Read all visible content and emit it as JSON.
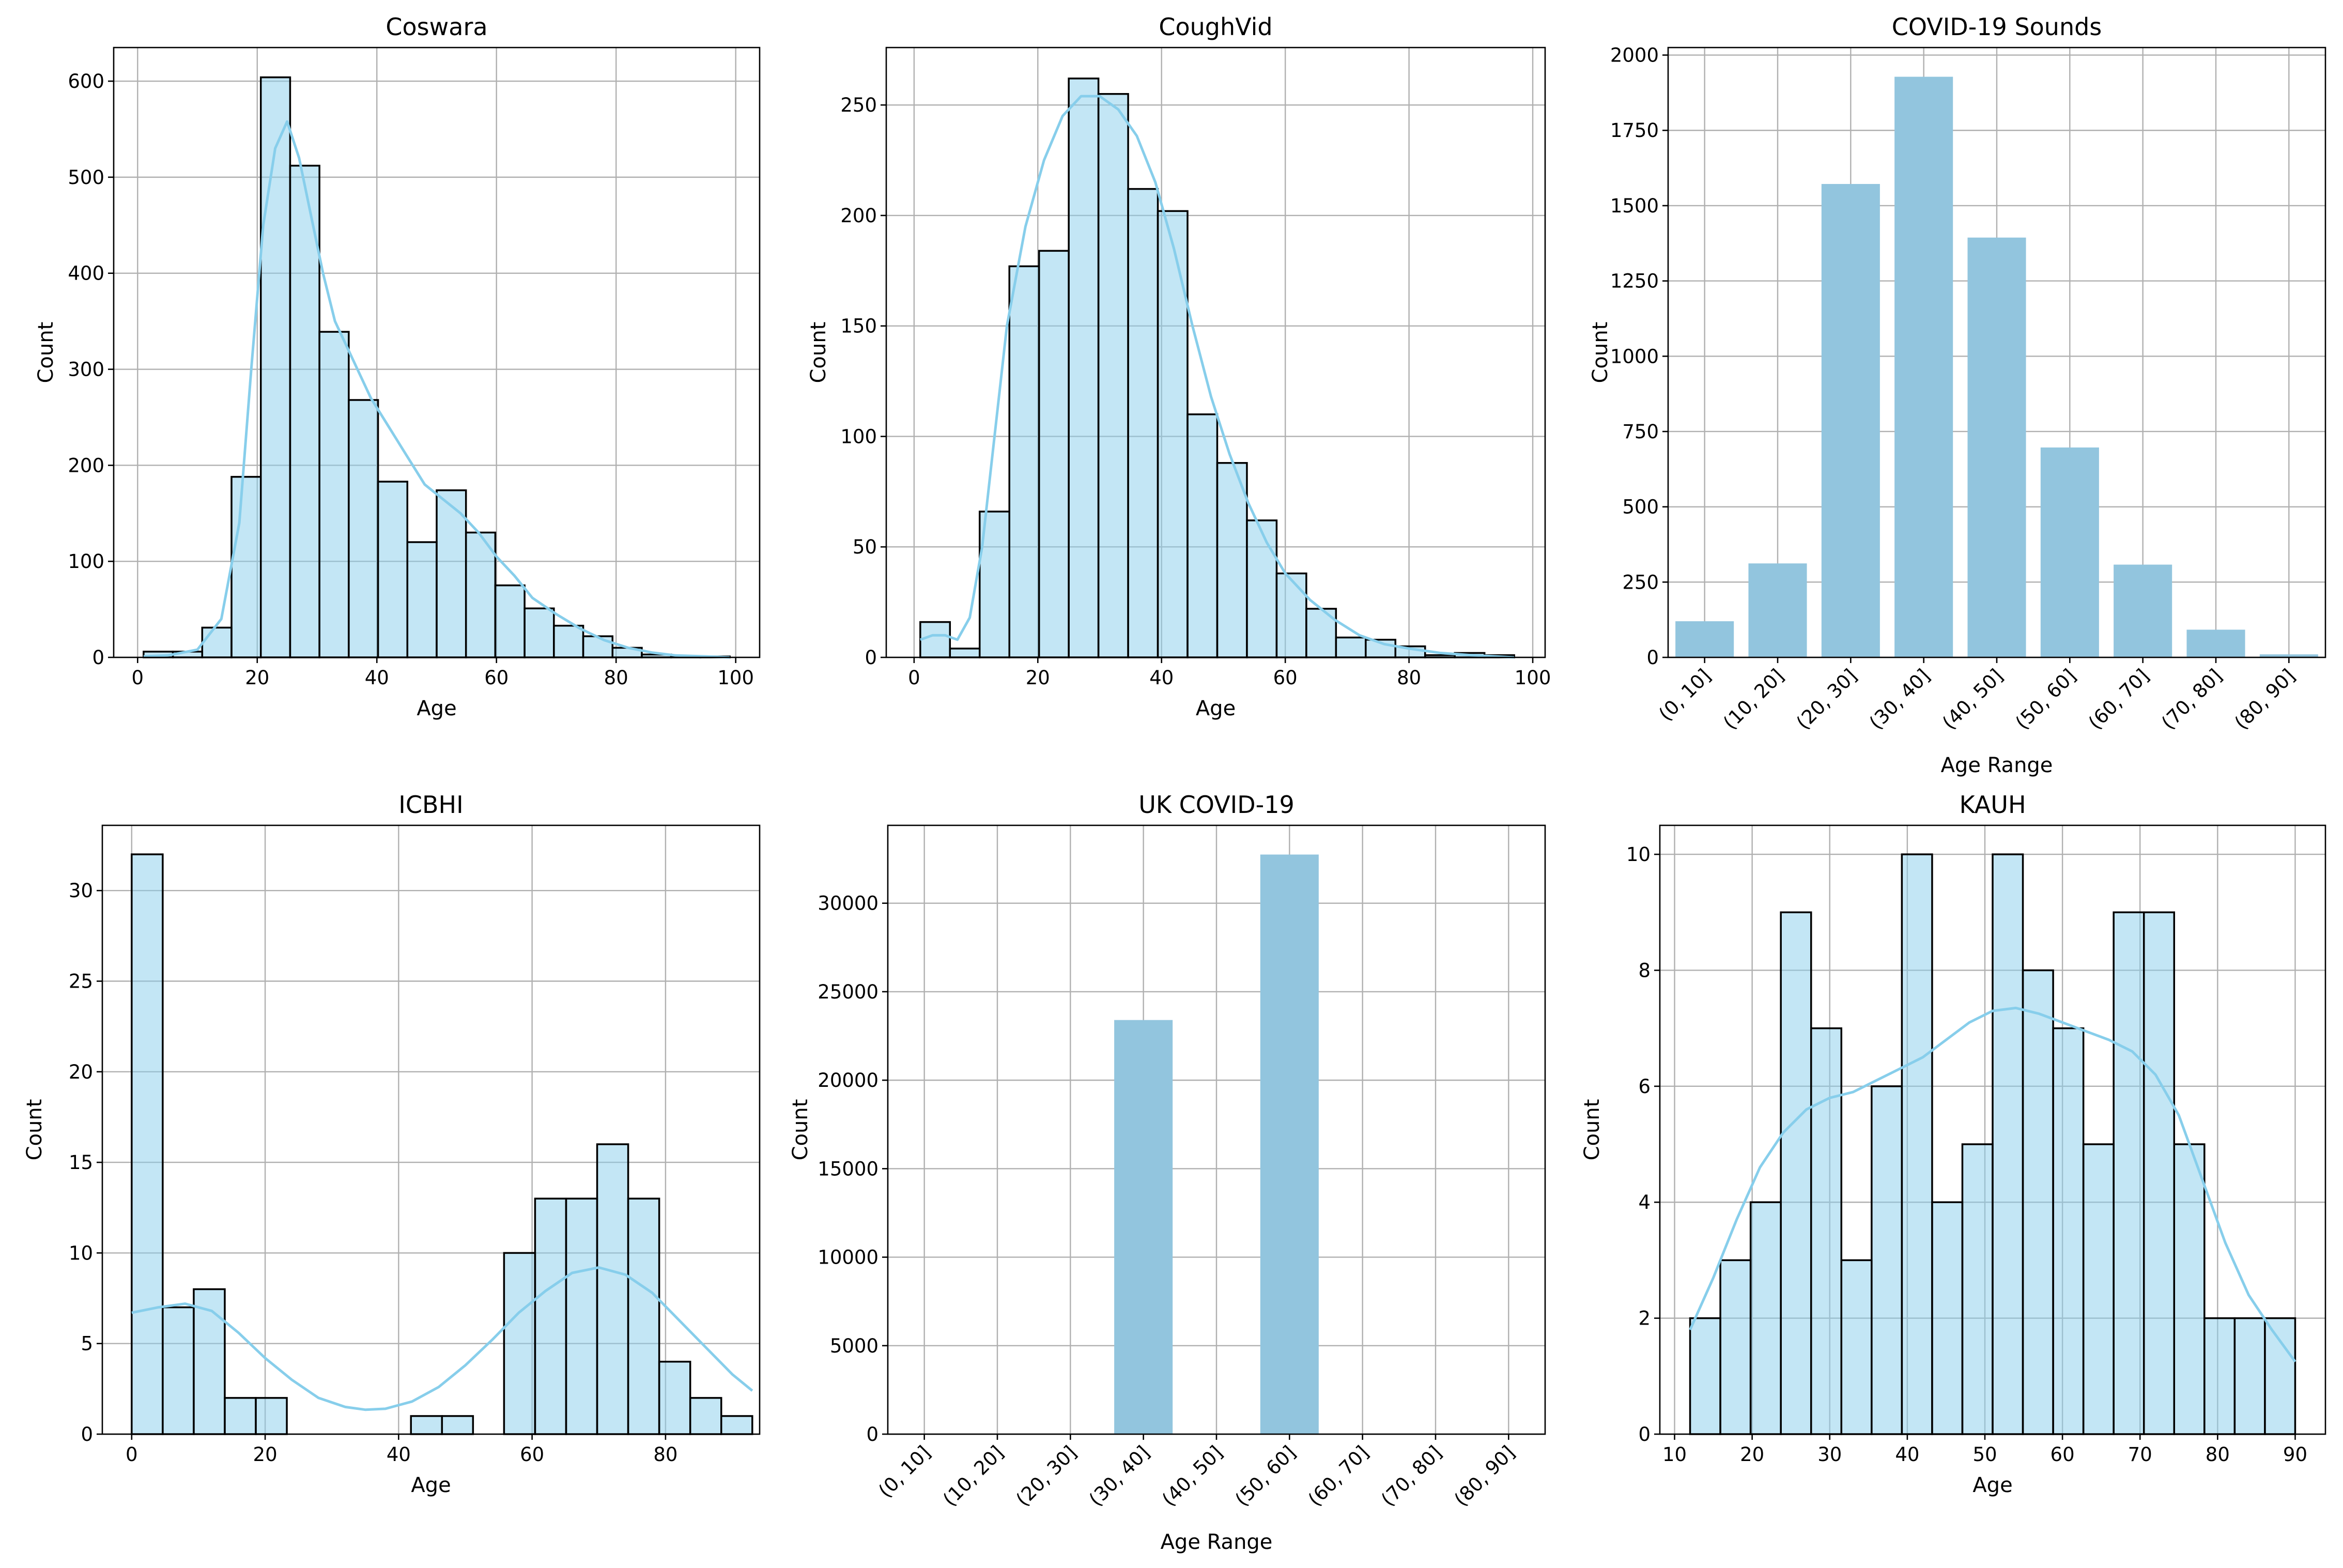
{
  "chart_data": [
    {
      "type": "bar",
      "variant": "histogram",
      "title": "Coswara",
      "xlabel": "Age",
      "ylabel": "Count",
      "xlim": [
        -4,
        104
      ],
      "ylim": [
        0,
        635
      ],
      "xticks": [
        0,
        20,
        40,
        60,
        80,
        100
      ],
      "yticks": [
        0,
        100,
        200,
        300,
        400,
        500,
        600
      ],
      "grid": true,
      "bar_color": "#87CEEB",
      "bar_alpha": 0.5,
      "edge_color": "#000000",
      "kde": true,
      "kde_color": "#87CEEB",
      "bin_edges": [
        1,
        5.9,
        10.8,
        15.7,
        20.6,
        25.5,
        30.4,
        35.3,
        40.2,
        45.1,
        50,
        54.9,
        59.8,
        64.7,
        69.6,
        74.5,
        79.4,
        84.3,
        89.2,
        94.1,
        99
      ],
      "values": [
        6,
        6,
        31,
        188,
        604,
        512,
        339,
        268,
        183,
        120,
        174,
        130,
        75,
        51,
        33,
        22,
        10,
        3,
        1,
        1
      ],
      "kde_points": [
        [
          1,
          1
        ],
        [
          5,
          2
        ],
        [
          10,
          8
        ],
        [
          14,
          40
        ],
        [
          17,
          140
        ],
        [
          19,
          300
        ],
        [
          21,
          450
        ],
        [
          23,
          530
        ],
        [
          25,
          558
        ],
        [
          27,
          520
        ],
        [
          29,
          460
        ],
        [
          31,
          400
        ],
        [
          33,
          350
        ],
        [
          36,
          310
        ],
        [
          39,
          270
        ],
        [
          42,
          240
        ],
        [
          45,
          210
        ],
        [
          48,
          180
        ],
        [
          51,
          165
        ],
        [
          54,
          150
        ],
        [
          57,
          130
        ],
        [
          60,
          105
        ],
        [
          63,
          85
        ],
        [
          66,
          62
        ],
        [
          70,
          45
        ],
        [
          74,
          30
        ],
        [
          78,
          18
        ],
        [
          82,
          10
        ],
        [
          86,
          5
        ],
        [
          90,
          2
        ],
        [
          95,
          1
        ],
        [
          99,
          0
        ]
      ]
    },
    {
      "type": "bar",
      "variant": "histogram",
      "title": "CoughVid",
      "xlabel": "Age",
      "ylabel": "Count",
      "xlim": [
        -4.5,
        102
      ],
      "ylim": [
        0,
        276
      ],
      "xticks": [
        0,
        20,
        40,
        60,
        80,
        100
      ],
      "yticks": [
        0,
        50,
        100,
        150,
        200,
        250
      ],
      "grid": true,
      "bar_color": "#87CEEB",
      "bar_alpha": 0.5,
      "edge_color": "#000000",
      "kde": true,
      "kde_color": "#87CEEB",
      "bin_edges": [
        1,
        5.8,
        10.6,
        15.4,
        20.2,
        25,
        29.8,
        34.6,
        39.4,
        44.2,
        49,
        53.8,
        58.6,
        63.4,
        68.2,
        73,
        77.8,
        82.6,
        87.4,
        92.2,
        97
      ],
      "values": [
        16,
        4,
        66,
        177,
        184,
        262,
        255,
        212,
        202,
        110,
        88,
        62,
        38,
        22,
        9,
        8,
        5,
        1,
        2,
        1
      ],
      "kde_points": [
        [
          1,
          8
        ],
        [
          3,
          10
        ],
        [
          5,
          10
        ],
        [
          7,
          8
        ],
        [
          9,
          18
        ],
        [
          11,
          50
        ],
        [
          13,
          100
        ],
        [
          15,
          150
        ],
        [
          18,
          195
        ],
        [
          21,
          225
        ],
        [
          24,
          245
        ],
        [
          27,
          254
        ],
        [
          30,
          254
        ],
        [
          33,
          248
        ],
        [
          36,
          236
        ],
        [
          39,
          215
        ],
        [
          42,
          185
        ],
        [
          45,
          150
        ],
        [
          48,
          118
        ],
        [
          51,
          92
        ],
        [
          54,
          70
        ],
        [
          57,
          52
        ],
        [
          60,
          38
        ],
        [
          64,
          26
        ],
        [
          68,
          17
        ],
        [
          72,
          10
        ],
        [
          76,
          6
        ],
        [
          80,
          4
        ],
        [
          85,
          2
        ],
        [
          90,
          1
        ],
        [
          97,
          0
        ]
      ]
    },
    {
      "type": "bar",
      "title": "COVID-19 Sounds",
      "xlabel": "Age Range",
      "ylabel": "Count",
      "categories": [
        "(0, 10]",
        "(10, 20]",
        "(20, 30]",
        "(30, 40]",
        "(40, 50]",
        "(50, 60]",
        "(60, 70]",
        "(70, 80]",
        "(80, 90]"
      ],
      "values": [
        120,
        312,
        1572,
        1928,
        1394,
        697,
        308,
        92,
        10
      ],
      "ylim": [
        0,
        2025
      ],
      "yticks": [
        0,
        250,
        500,
        750,
        1000,
        1250,
        1500,
        1750,
        2000
      ],
      "yticklabels": [
        "0",
        "250",
        "500",
        "750",
        "1000",
        "1250",
        "1500",
        "1750",
        "2000"
      ],
      "grid": true,
      "bar_color": "#92C5DE",
      "tick_rotation": -45
    },
    {
      "type": "bar",
      "variant": "histogram",
      "title": "ICBHI",
      "xlabel": "Age",
      "ylabel": "Count",
      "xlim": [
        -4.4,
        94.1
      ],
      "ylim": [
        0,
        33.6
      ],
      "xticks": [
        0,
        20,
        40,
        60,
        80
      ],
      "yticks": [
        0,
        5,
        10,
        15,
        20,
        25,
        30
      ],
      "grid": true,
      "bar_color": "#87CEEB",
      "bar_alpha": 0.5,
      "edge_color": "#000000",
      "kde": true,
      "kde_color": "#87CEEB",
      "bin_edges": [
        0,
        4.65,
        9.3,
        13.95,
        18.6,
        23.25,
        27.9,
        32.55,
        37.2,
        41.85,
        46.5,
        51.15,
        55.8,
        60.45,
        65.1,
        69.75,
        74.4,
        79.05,
        83.7,
        88.35,
        93
      ],
      "values": [
        32,
        7,
        8,
        2,
        2,
        0,
        0,
        0,
        0,
        1,
        1,
        0,
        10,
        13,
        13,
        16,
        13,
        4,
        2,
        1
      ],
      "kde_points": [
        [
          0,
          6.7
        ],
        [
          4,
          7
        ],
        [
          8,
          7.2
        ],
        [
          12,
          6.8
        ],
        [
          16,
          5.6
        ],
        [
          20,
          4.2
        ],
        [
          24,
          3
        ],
        [
          28,
          2
        ],
        [
          32,
          1.5
        ],
        [
          35,
          1.35
        ],
        [
          38,
          1.4
        ],
        [
          42,
          1.8
        ],
        [
          46,
          2.6
        ],
        [
          50,
          3.8
        ],
        [
          54,
          5.2
        ],
        [
          58,
          6.7
        ],
        [
          62,
          7.9
        ],
        [
          66,
          8.9
        ],
        [
          70,
          9.2
        ],
        [
          74,
          8.8
        ],
        [
          78,
          7.8
        ],
        [
          82,
          6.3
        ],
        [
          86,
          4.8
        ],
        [
          90,
          3.3
        ],
        [
          93,
          2.4
        ]
      ]
    },
    {
      "type": "bar",
      "title": "UK COVID-19",
      "xlabel": "Age Range",
      "ylabel": "Count",
      "categories": [
        "(0, 10]",
        "(10, 20]",
        "(20, 30]",
        "(30, 40]",
        "(40, 50]",
        "(50, 60]",
        "(60, 70]",
        "(70, 80]",
        "(80, 90]"
      ],
      "values": [
        0,
        0,
        0,
        23400,
        0,
        32750,
        0,
        0,
        0
      ],
      "ylim": [
        0,
        34400
      ],
      "yticks": [
        0,
        5000,
        10000,
        15000,
        20000,
        25000,
        30000
      ],
      "yticklabels": [
        "0",
        "5000",
        "10000",
        "15000",
        "20000",
        "25000",
        "30000"
      ],
      "grid": true,
      "bar_color": "#92C5DE",
      "tick_rotation": -45
    },
    {
      "type": "bar",
      "variant": "histogram",
      "title": "KAUH",
      "xlabel": "Age",
      "ylabel": "Count",
      "xlim": [
        8.1,
        93.9
      ],
      "ylim": [
        0,
        10.5
      ],
      "xticks": [
        10,
        20,
        30,
        40,
        50,
        60,
        70,
        80,
        90
      ],
      "yticks": [
        0,
        2,
        4,
        6,
        8,
        10
      ],
      "grid": true,
      "bar_color": "#87CEEB",
      "bar_alpha": 0.5,
      "edge_color": "#000000",
      "kde": true,
      "kde_color": "#87CEEB",
      "bin_edges": [
        12,
        15.9,
        19.8,
        23.7,
        27.6,
        31.5,
        35.4,
        39.3,
        43.2,
        47.1,
        51,
        54.9,
        58.8,
        62.7,
        66.6,
        70.5,
        74.4,
        78.3,
        82.2,
        86.1,
        90
      ],
      "values": [
        2,
        3,
        4,
        9,
        7,
        3,
        6,
        10,
        4,
        5,
        10,
        8,
        7,
        5,
        9,
        9,
        5,
        2,
        2,
        2
      ],
      "kde_points": [
        [
          12,
          1.8
        ],
        [
          15,
          2.7
        ],
        [
          18,
          3.7
        ],
        [
          21,
          4.6
        ],
        [
          24,
          5.2
        ],
        [
          27,
          5.6
        ],
        [
          30,
          5.8
        ],
        [
          33,
          5.9
        ],
        [
          36,
          6.1
        ],
        [
          39,
          6.3
        ],
        [
          42,
          6.5
        ],
        [
          45,
          6.8
        ],
        [
          48,
          7.1
        ],
        [
          51,
          7.3
        ],
        [
          54,
          7.35
        ],
        [
          57,
          7.25
        ],
        [
          60,
          7.1
        ],
        [
          63,
          6.95
        ],
        [
          66,
          6.8
        ],
        [
          69,
          6.6
        ],
        [
          72,
          6.2
        ],
        [
          75,
          5.5
        ],
        [
          78,
          4.4
        ],
        [
          81,
          3.3
        ],
        [
          84,
          2.4
        ],
        [
          87,
          1.8
        ],
        [
          90,
          1.25
        ]
      ]
    }
  ]
}
